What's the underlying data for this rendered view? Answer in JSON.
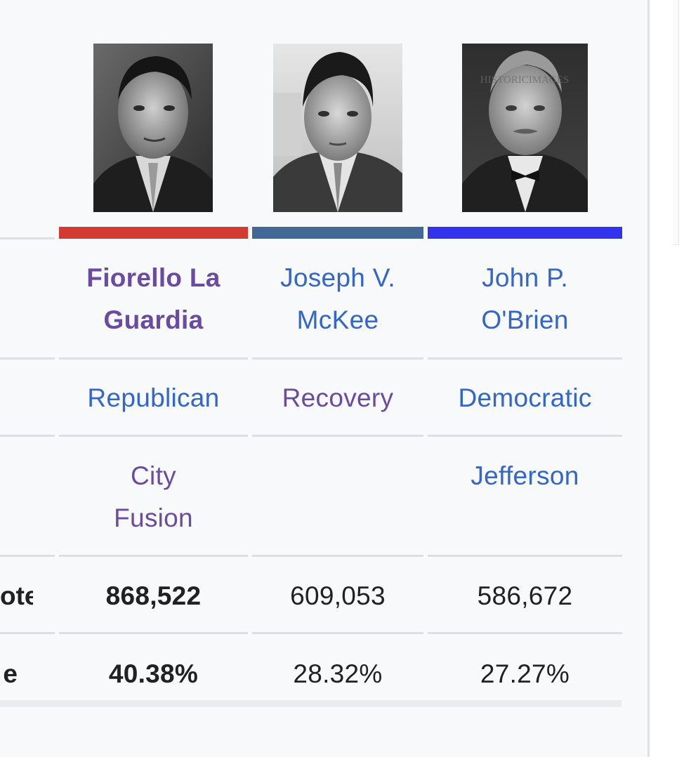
{
  "colors": {
    "republican": "#d33a32",
    "recovery": "#416897",
    "democratic": "#3333ee",
    "link": "#3366cc",
    "visited_link": "#6b4ba1"
  },
  "photos": [
    {
      "name": "fiorello-la-guardia-photo"
    },
    {
      "name": "joseph-mckee-photo"
    },
    {
      "name": "john-obrien-photo",
      "watermark": "HISTORICIMAGES"
    }
  ],
  "candidates": [
    {
      "name_line1": "Fiorello La",
      "name_line2": "Guardia",
      "party": "Republican",
      "alliance_line1": "City",
      "alliance_line2": "Fusion",
      "popular_vote": "868,522",
      "percentage": "40.38%"
    },
    {
      "name_line1": "Joseph V.",
      "name_line2": "McKee",
      "party": "Recovery",
      "alliance_line1": "",
      "alliance_line2": "",
      "popular_vote": "609,053",
      "percentage": "28.32%"
    },
    {
      "name_line1": "John P.",
      "name_line2": "O'Brien",
      "party": "Democratic",
      "alliance_line1": "Jefferson",
      "alliance_line2": "",
      "popular_vote": "586,672",
      "percentage": "27.27%"
    }
  ],
  "row_labels": {
    "popular_vote": "ote",
    "percentage": "e"
  }
}
